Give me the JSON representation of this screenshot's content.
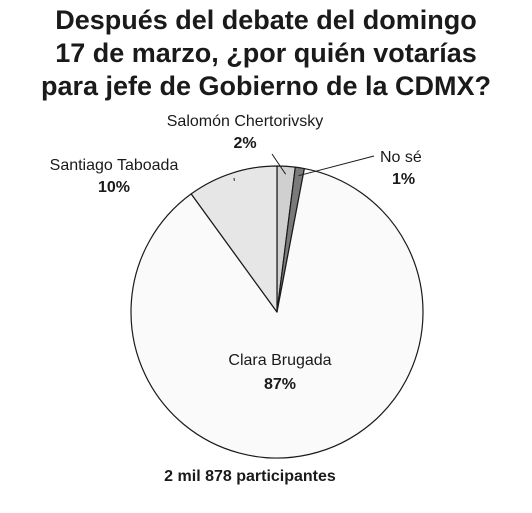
{
  "title_lines": [
    "Después del debate del domingo",
    "17 de marzo, ¿por quién votarías",
    "para jefe de Gobierno de la CDMX?"
  ],
  "footer": "2 mil 878 participantes",
  "chart_data": {
    "type": "pie",
    "title": "Después del debate del domingo 17 de marzo, ¿por quién votarías para jefe de Gobierno de la CDMX?",
    "slices": [
      {
        "label": "Salomón Chertorivsky",
        "value": 2,
        "value_label": "2%",
        "color": "#d0d0d0"
      },
      {
        "label": "No sé",
        "value": 1,
        "value_label": "1%",
        "color": "#7a7a7a"
      },
      {
        "label": "Clara Brugada",
        "value": 87,
        "value_label": "87%",
        "color": "#fafafa"
      },
      {
        "label": "Santiago Taboada",
        "value": 10,
        "value_label": "10%",
        "color": "#e6e6e6"
      }
    ],
    "start_angle_deg": 0,
    "direction": "clockwise",
    "stroke_color": "#1a1a1a"
  }
}
